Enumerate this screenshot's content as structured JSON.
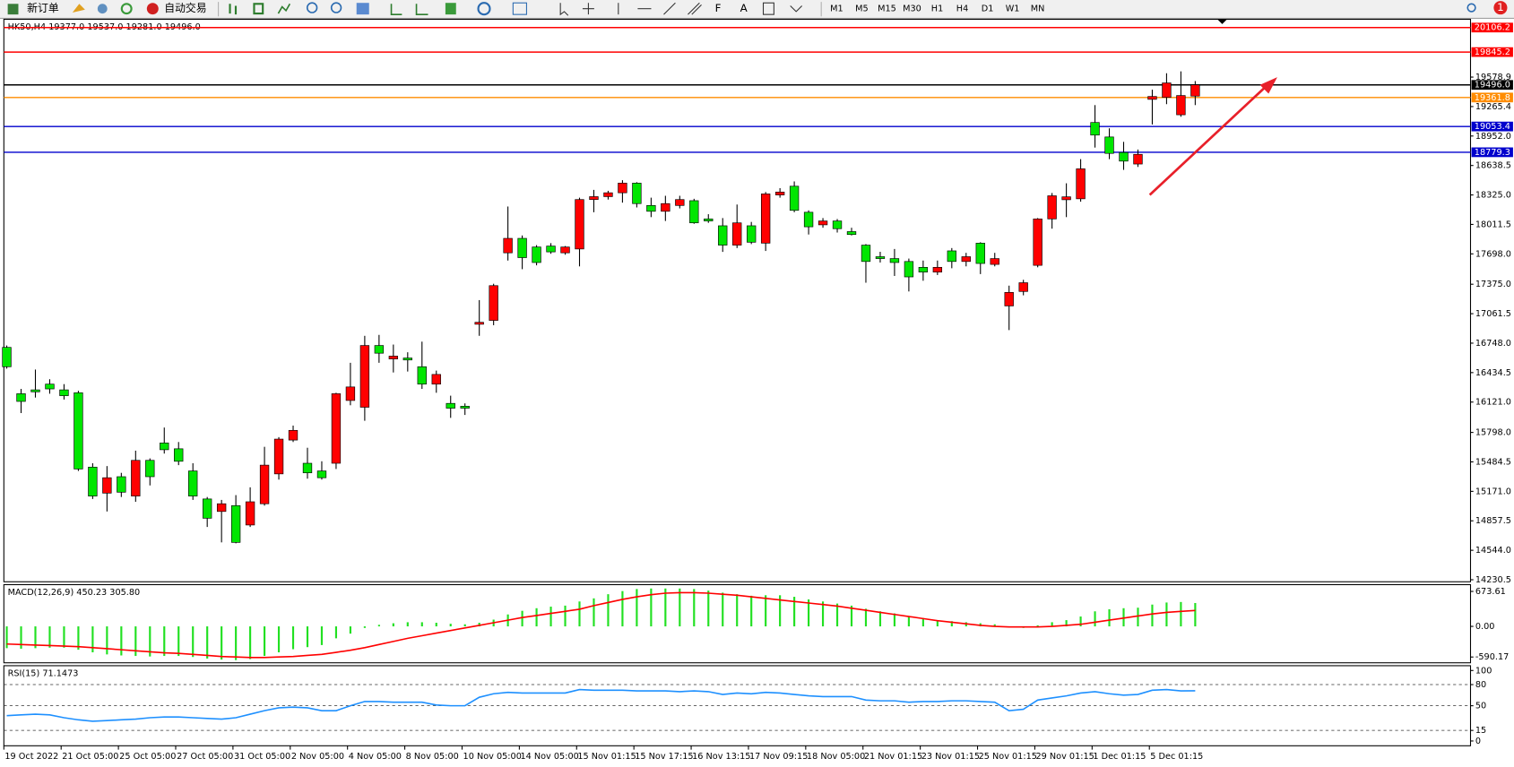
{
  "toolbar": {
    "new_order": "新订单",
    "auto_trading": "自动交易",
    "font_tool": "A",
    "timeframes": [
      "M1",
      "M5",
      "M15",
      "M30",
      "H1",
      "H4",
      "D1",
      "W1",
      "MN"
    ],
    "notifications": 1
  },
  "chart_data": [
    {
      "type": "candlestick",
      "title": "HK50,H4 19377.0 19537.0 19281.0 19496.0",
      "up_color": "#ff0000",
      "down_color": "#00e600",
      "categories": [
        "19 Oct 2022",
        null,
        null,
        null,
        "21 Oct 05:00",
        null,
        null,
        null,
        "25 Oct 05:00",
        null,
        null,
        null,
        "27 Oct 05:00",
        null,
        null,
        null,
        "31 Oct 05:00",
        null,
        null,
        null,
        "2 Nov 05:00",
        null,
        null,
        null,
        "4 Nov 05:00",
        null,
        null,
        null,
        "8 Nov 05:00",
        null,
        null,
        null,
        "10 Nov 05:00",
        null,
        null,
        null,
        "14 Nov 05:00",
        null,
        null,
        null,
        "15 Nov 01:15",
        null,
        null,
        null,
        "15 Nov 17:15",
        null,
        null,
        null,
        "16 Nov 13:15",
        null,
        null,
        null,
        "17 Nov 09:15",
        null,
        null,
        null,
        "18 Nov 05:00",
        null,
        null,
        null,
        "21 Nov 01:15",
        null,
        null,
        null,
        "23 Nov 01:15",
        null,
        null,
        null,
        "25 Nov 01:15",
        null,
        null,
        null,
        "29 Nov 01:15",
        null,
        null,
        null,
        "1 Dec 01:15",
        null,
        null,
        null,
        "5 Dec 01:15",
        null,
        null,
        null
      ],
      "open": [
        16703,
        16210,
        16251,
        16312,
        16251,
        16220,
        15429,
        15152,
        15327,
        15121,
        15501,
        15686,
        15624,
        15388,
        15090,
        14957,
        15019,
        14813,
        15039,
        15357,
        15717,
        15470,
        15388,
        15470,
        16138,
        16066,
        16723,
        16580,
        16590,
        16497,
        16312,
        16107,
        16077,
        16949,
        16990,
        17709,
        17863,
        17771,
        17781,
        17709,
        17750,
        18276,
        18307,
        18348,
        18451,
        18213,
        18151,
        18213,
        18264,
        18070,
        17997,
        17791,
        17997,
        17812,
        18325,
        18418,
        18141,
        18007,
        18048,
        17935,
        17791,
        17668,
        17648,
        17617,
        17555,
        17504,
        17730,
        17617,
        17812,
        17586,
        17144,
        17298,
        17576,
        18070,
        18274,
        18284,
        19096,
        18942,
        18777,
        18654,
        19342,
        19363,
        19178,
        19377
      ],
      "high": [
        16723,
        16261,
        16467,
        16364,
        16312,
        16241,
        15470,
        15440,
        15368,
        15604,
        15522,
        15850,
        15696,
        15470,
        15111,
        15080,
        15131,
        15214,
        15645,
        15748,
        15871,
        15635,
        15491,
        16220,
        16539,
        16826,
        16836,
        16733,
        16651,
        16764,
        16456,
        16189,
        16107,
        17206,
        17380,
        18202,
        17894,
        17791,
        17812,
        17781,
        18296,
        18379,
        18369,
        18482,
        18461,
        18296,
        18316,
        18316,
        18284,
        18120,
        18079,
        18223,
        18038,
        18356,
        18397,
        18469,
        18161,
        18079,
        18069,
        17976,
        17802,
        17720,
        17750,
        17648,
        17627,
        17627,
        17760,
        17709,
        17822,
        17709,
        17360,
        17422,
        18079,
        18346,
        18449,
        18706,
        19281,
        19034,
        18890,
        18808,
        19445,
        19620,
        19640,
        19537
      ],
      "low": [
        16477,
        16004,
        16169,
        16210,
        16148,
        15388,
        15090,
        14957,
        15111,
        15060,
        15234,
        15573,
        15450,
        15080,
        14792,
        14628,
        14618,
        14792,
        15019,
        15296,
        15696,
        15306,
        15296,
        15409,
        16087,
        15922,
        16539,
        16436,
        16446,
        16261,
        16220,
        15953,
        15984,
        16826,
        16939,
        17627,
        17535,
        17576,
        17699,
        17689,
        17565,
        18141,
        18276,
        18243,
        18192,
        18089,
        18048,
        18182,
        18018,
        18028,
        17719,
        17760,
        17802,
        17729,
        18296,
        18141,
        17904,
        17976,
        17925,
        17894,
        17391,
        17606,
        17463,
        17298,
        17412,
        17473,
        17545,
        17565,
        17483,
        17565,
        16887,
        17257,
        17555,
        17966,
        18089,
        18253,
        18829,
        18706,
        18592,
        18623,
        19075,
        19291,
        19157,
        19281
      ],
      "close": [
        16497,
        16128,
        16230,
        16261,
        16189,
        15409,
        15121,
        15316,
        15162,
        15501,
        15327,
        15614,
        15491,
        15121,
        14885,
        15039,
        14628,
        15060,
        15450,
        15727,
        15820,
        15368,
        15316,
        16210,
        16282,
        16723,
        16641,
        16610,
        16569,
        16312,
        16415,
        16056,
        16056,
        16970,
        17360,
        17863,
        17658,
        17606,
        17719,
        17771,
        18276,
        18307,
        18348,
        18451,
        18233,
        18151,
        18233,
        18276,
        18028,
        18048,
        17791,
        18028,
        17822,
        18336,
        18356,
        18161,
        17986,
        18048,
        17966,
        17904,
        17617,
        17648,
        17606,
        17453,
        17504,
        17555,
        17617,
        17668,
        17596,
        17648,
        17288,
        17391,
        18070,
        18316,
        18305,
        18603,
        18962,
        18767,
        18685,
        18757,
        19373,
        19517,
        19383,
        19496
      ],
      "ylim": [
        14209,
        20194
      ],
      "yticks": [
        {
          "value": 14230.5,
          "label": "14230.5"
        },
        {
          "value": 14544,
          "label": "14544.0"
        },
        14857.5,
        {
          "value": 15171,
          "label": "15171.0"
        },
        15484.5,
        {
          "value": 15798,
          "label": "15798.0"
        },
        {
          "value": 16121,
          "label": "16121.0"
        },
        16434.5,
        {
          "value": 16748,
          "label": "16748.0"
        },
        17061.5,
        {
          "value": 17375,
          "label": "17375.0"
        },
        {
          "value": 17698,
          "label": "17698.0"
        },
        18011.5,
        {
          "value": 18325,
          "label": "18325.0"
        },
        18638.5,
        {
          "value": 18952,
          "label": "18952.0"
        },
        19265.4,
        19578.9
      ],
      "levels": [
        {
          "value": 20106.2,
          "color": "#ff0000"
        },
        {
          "value": 19845.2,
          "color": "#ff0000"
        },
        {
          "value": 19496,
          "label": "19496.0",
          "color": "#000000"
        },
        {
          "value": 19361.8,
          "color": "#ff8c00"
        },
        {
          "value": 19053.4,
          "color": "#0000cd"
        },
        {
          "value": 18779.3,
          "color": "#0000cd"
        }
      ]
    },
    {
      "type": "macd",
      "title": "MACD(12,26,9) 450.23 305.80",
      "series": [
        {
          "type": "bar",
          "color": "#22e022",
          "values": [
            -420,
            -430,
            -420,
            -410,
            -410,
            -450,
            -500,
            -540,
            -560,
            -570,
            -580,
            -570,
            -570,
            -590,
            -620,
            -640,
            -650,
            -630,
            -570,
            -500,
            -440,
            -400,
            -360,
            -230,
            -140,
            -30,
            30,
            60,
            80,
            80,
            70,
            50,
            40,
            70,
            130,
            230,
            300,
            350,
            380,
            400,
            480,
            540,
            620,
            680,
            720,
            730,
            730,
            730,
            720,
            690,
            650,
            620,
            590,
            600,
            600,
            570,
            520,
            480,
            440,
            400,
            340,
            290,
            250,
            200,
            160,
            120,
            100,
            80,
            60,
            40,
            -20,
            -30,
            20,
            80,
            120,
            190,
            290,
            330,
            350,
            360,
            420,
            460,
            470,
            450.23
          ]
        },
        {
          "type": "line",
          "color": "#ff0000",
          "values": [
            -340,
            -350,
            -360,
            -370,
            -380,
            -390,
            -410,
            -430,
            -450,
            -470,
            -490,
            -510,
            -520,
            -540,
            -560,
            -580,
            -590,
            -600,
            -600,
            -590,
            -580,
            -560,
            -540,
            -500,
            -460,
            -410,
            -350,
            -290,
            -230,
            -180,
            -130,
            -80,
            -30,
            20,
            70,
            120,
            170,
            210,
            250,
            290,
            330,
            400,
            460,
            520,
            570,
            610,
            640,
            650,
            650,
            640,
            620,
            600,
            570,
            540,
            510,
            480,
            450,
            420,
            390,
            350,
            310,
            270,
            230,
            190,
            150,
            110,
            80,
            50,
            20,
            0,
            -10,
            -10,
            -10,
            0,
            20,
            40,
            80,
            120,
            160,
            200,
            240,
            270,
            290,
            305.8
          ]
        }
      ],
      "ylim": [
        -702,
        804
      ],
      "yticks": [
        -590.17,
        {
          "value": 0,
          "label": "0.00"
        },
        673.61
      ]
    },
    {
      "type": "rsi",
      "title": "RSI(15) 71.1473",
      "color": "#1e90ff",
      "values": [
        36,
        37,
        38,
        37,
        33,
        30,
        28,
        29,
        30,
        31,
        33,
        34,
        34,
        33,
        32,
        31,
        33,
        38,
        43,
        47,
        48,
        47,
        43,
        43,
        50,
        56,
        56,
        55,
        55,
        55,
        51,
        50,
        50,
        62,
        67,
        69,
        68,
        68,
        68,
        68,
        73,
        72,
        72,
        72,
        71,
        71,
        71,
        70,
        71,
        70,
        66,
        68,
        67,
        69,
        68,
        66,
        64,
        63,
        63,
        63,
        58,
        57,
        57,
        55,
        56,
        56,
        57,
        57,
        56,
        55,
        43,
        45,
        58,
        61,
        64,
        68,
        70,
        67,
        65,
        66,
        72,
        73,
        71,
        71.1473
      ],
      "ylim": [
        -6.8,
        106.8
      ],
      "yticks": [
        0,
        15,
        50,
        80,
        100
      ],
      "levels": [
        80,
        50,
        15
      ]
    }
  ]
}
